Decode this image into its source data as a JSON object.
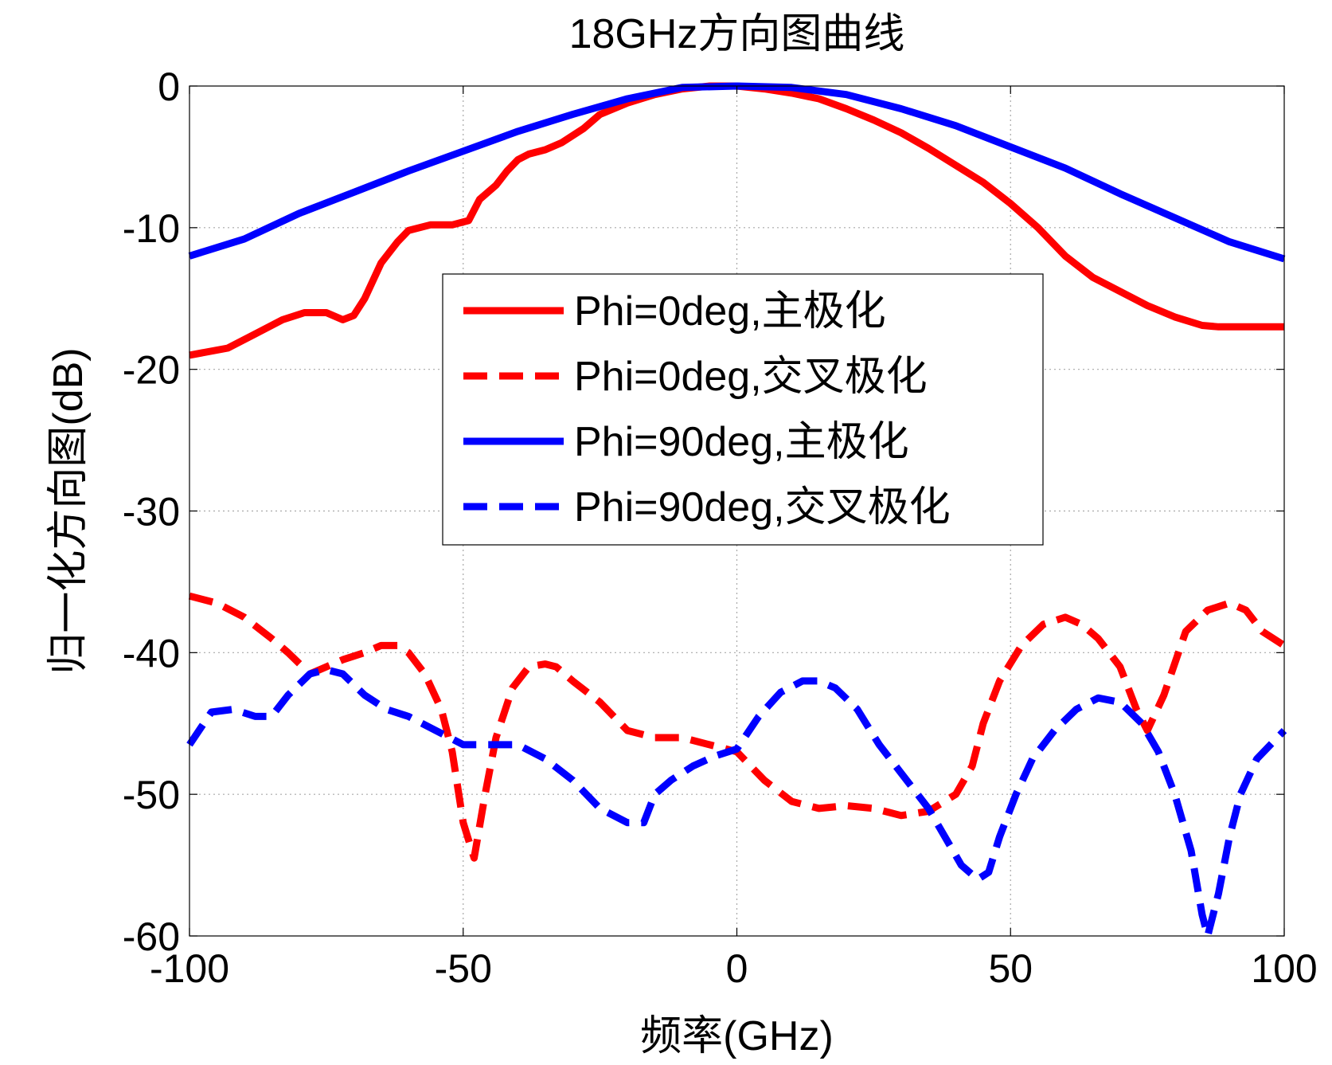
{
  "chart_data": {
    "type": "line",
    "title": "18GHz方向图曲线",
    "xlabel": "频率(GHz)",
    "ylabel": "归一化方向图(dB)",
    "xlim": [
      -100,
      100
    ],
    "ylim": [
      -60,
      0
    ],
    "xticks": [
      -100,
      -50,
      0,
      50,
      100
    ],
    "yticks": [
      0,
      -10,
      -20,
      -30,
      -40,
      -50,
      -60
    ],
    "xtick_labels": [
      "-100",
      "-50",
      "0",
      "50",
      "100"
    ],
    "ytick_labels": [
      "0",
      "-10",
      "-20",
      "-30",
      "-40",
      "-50",
      "-60"
    ],
    "grid": true,
    "legend_position": "center",
    "series": [
      {
        "name": "Phi=0deg,主极化",
        "color": "#ff0000",
        "style": "solid",
        "x": [
          -100,
          -93,
          -88,
          -83,
          -79,
          -75,
          -72,
          -70,
          -68,
          -65,
          -62,
          -60,
          -56,
          -52,
          -49,
          -47,
          -44,
          -42,
          -40,
          -38,
          -35,
          -32,
          -28,
          -25,
          -20,
          -15,
          -10,
          -5,
          0,
          5,
          10,
          15,
          20,
          25,
          30,
          35,
          40,
          45,
          50,
          55,
          60,
          65,
          70,
          75,
          80,
          85,
          88,
          90,
          95,
          100
        ],
        "values": [
          -19,
          -18.5,
          -17.5,
          -16.5,
          -16,
          -16,
          -16.5,
          -16.2,
          -15,
          -12.5,
          -11,
          -10.2,
          -9.8,
          -9.8,
          -9.5,
          -8,
          -7,
          -6,
          -5.2,
          -4.8,
          -4.5,
          -4,
          -3,
          -2,
          -1.2,
          -0.6,
          -0.2,
          0,
          0,
          -0.2,
          -0.5,
          -0.9,
          -1.6,
          -2.4,
          -3.3,
          -4.4,
          -5.6,
          -6.8,
          -8.3,
          -10,
          -12,
          -13.5,
          -14.5,
          -15.5,
          -16.3,
          -16.9,
          -17,
          -17,
          -17,
          -17
        ]
      },
      {
        "name": "Phi=0deg,交叉极化",
        "color": "#ff0000",
        "style": "dashed",
        "x": [
          -100,
          -95,
          -90,
          -85,
          -82,
          -78,
          -75,
          -72,
          -68,
          -65,
          -62,
          -60,
          -57,
          -54,
          -52,
          -50,
          -48,
          -46,
          -44,
          -41,
          -38,
          -35,
          -33,
          -30,
          -25,
          -20,
          -15,
          -10,
          -5,
          0,
          5,
          10,
          15,
          20,
          25,
          30,
          35,
          40,
          43,
          45,
          48,
          52,
          56,
          60,
          63,
          66,
          70,
          73,
          75,
          78,
          82,
          86,
          90,
          93,
          96,
          100
        ],
        "values": [
          -36,
          -36.5,
          -37.5,
          -39,
          -40,
          -41.5,
          -41,
          -40.5,
          -40,
          -39.5,
          -39.5,
          -40,
          -41.5,
          -44,
          -47,
          -52,
          -54.5,
          -50,
          -46,
          -42.5,
          -41,
          -40.8,
          -41,
          -42,
          -43.5,
          -45.5,
          -46,
          -46,
          -46.5,
          -47,
          -49,
          -50.5,
          -51,
          -50.8,
          -51,
          -51.5,
          -51.2,
          -50,
          -48,
          -45,
          -42,
          -39.5,
          -38,
          -37.5,
          -38,
          -39,
          -41,
          -44,
          -45.5,
          -43,
          -38.5,
          -37,
          -36.5,
          -37,
          -38.5,
          -39.5
        ]
      },
      {
        "name": "Phi=90deg,主极化",
        "color": "#0000ff",
        "style": "solid",
        "x": [
          -100,
          -90,
          -80,
          -70,
          -60,
          -50,
          -40,
          -30,
          -20,
          -10,
          0,
          10,
          20,
          30,
          40,
          50,
          60,
          70,
          80,
          90,
          100
        ],
        "values": [
          -12,
          -10.8,
          -9,
          -7.5,
          -6,
          -4.6,
          -3.2,
          -2,
          -0.9,
          -0.1,
          0,
          -0.1,
          -0.6,
          -1.6,
          -2.8,
          -4.3,
          -5.8,
          -7.6,
          -9.3,
          -11,
          -12.2
        ]
      },
      {
        "name": "Phi=90deg,交叉极化",
        "color": "#0000ff",
        "style": "dashed",
        "x": [
          -100,
          -96,
          -92,
          -88,
          -85,
          -82,
          -78,
          -75,
          -72,
          -68,
          -64,
          -60,
          -55,
          -50,
          -45,
          -40,
          -35,
          -30,
          -25,
          -20,
          -17,
          -15,
          -12,
          -8,
          -4,
          0,
          4,
          8,
          12,
          15,
          18,
          22,
          26,
          30,
          35,
          38,
          41,
          44,
          46,
          48,
          51,
          54,
          58,
          62,
          66,
          70,
          74,
          77,
          80,
          83,
          85,
          86,
          88,
          90,
          92,
          95,
          100
        ],
        "values": [
          -46.5,
          -44.2,
          -44,
          -44.5,
          -44.5,
          -43,
          -41.5,
          -41.2,
          -41.5,
          -43,
          -44,
          -44.5,
          -45.5,
          -46.5,
          -46.5,
          -46.5,
          -47.5,
          -49,
          -51,
          -52,
          -52,
          -50,
          -49,
          -48,
          -47.3,
          -46.8,
          -44.5,
          -42.8,
          -42,
          -42,
          -42.5,
          -44,
          -46.5,
          -48.5,
          -51,
          -53,
          -55,
          -56,
          -55.5,
          -53,
          -50,
          -47.5,
          -45.5,
          -44,
          -43.2,
          -43.5,
          -45,
          -47,
          -50,
          -54,
          -58.5,
          -60,
          -57,
          -53,
          -50,
          -47.5,
          -45.5
        ]
      }
    ]
  }
}
